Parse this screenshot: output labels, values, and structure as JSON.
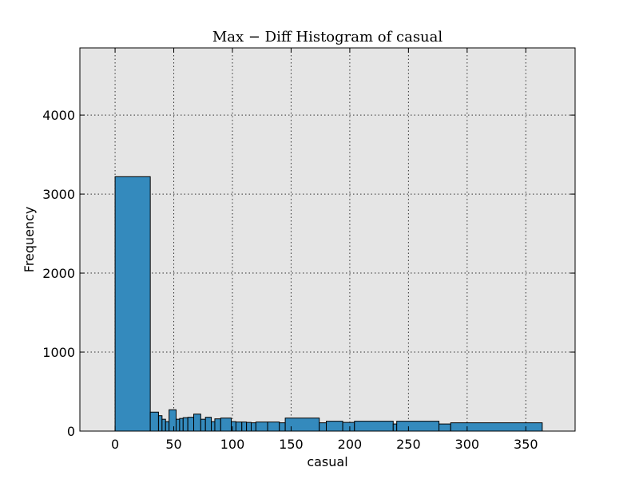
{
  "chart_data": {
    "type": "bar",
    "title": "Max − Diff Histogram of casual",
    "xlabel": "casual",
    "ylabel": "Frequency",
    "xlim": [
      -30,
      392
    ],
    "ylim": [
      0,
      4850
    ],
    "xticks": [
      "0",
      "50",
      "100",
      "150",
      "200",
      "250",
      "300",
      "350"
    ],
    "yticks": [
      "0",
      "1000",
      "2000",
      "3000",
      "4000"
    ],
    "grid": true,
    "background": "#E5E5E5",
    "bar_color": "#348ABD",
    "bins": [
      {
        "start": 0,
        "end": 30,
        "value": 3220
      },
      {
        "start": 30,
        "end": 37,
        "value": 240
      },
      {
        "start": 37,
        "end": 40,
        "value": 195
      },
      {
        "start": 40,
        "end": 43,
        "value": 150
      },
      {
        "start": 43,
        "end": 46,
        "value": 120
      },
      {
        "start": 46,
        "end": 52,
        "value": 270
      },
      {
        "start": 52,
        "end": 55,
        "value": 150
      },
      {
        "start": 55,
        "end": 58,
        "value": 160
      },
      {
        "start": 58,
        "end": 62,
        "value": 170
      },
      {
        "start": 62,
        "end": 67,
        "value": 175
      },
      {
        "start": 67,
        "end": 73,
        "value": 215
      },
      {
        "start": 73,
        "end": 77,
        "value": 150
      },
      {
        "start": 77,
        "end": 82,
        "value": 175
      },
      {
        "start": 82,
        "end": 85,
        "value": 120
      },
      {
        "start": 85,
        "end": 90,
        "value": 155
      },
      {
        "start": 90,
        "end": 99,
        "value": 165
      },
      {
        "start": 99,
        "end": 103,
        "value": 120
      },
      {
        "start": 103,
        "end": 108,
        "value": 115
      },
      {
        "start": 108,
        "end": 112,
        "value": 115
      },
      {
        "start": 112,
        "end": 116,
        "value": 110
      },
      {
        "start": 116,
        "end": 120,
        "value": 105
      },
      {
        "start": 120,
        "end": 130,
        "value": 115
      },
      {
        "start": 130,
        "end": 140,
        "value": 115
      },
      {
        "start": 140,
        "end": 145,
        "value": 105
      },
      {
        "start": 145,
        "end": 174,
        "value": 165
      },
      {
        "start": 174,
        "end": 180,
        "value": 105
      },
      {
        "start": 180,
        "end": 194,
        "value": 125
      },
      {
        "start": 194,
        "end": 204,
        "value": 110
      },
      {
        "start": 204,
        "end": 237,
        "value": 125
      },
      {
        "start": 237,
        "end": 240,
        "value": 90
      },
      {
        "start": 240,
        "end": 276,
        "value": 125
      },
      {
        "start": 276,
        "end": 286,
        "value": 90
      },
      {
        "start": 286,
        "end": 364,
        "value": 105
      }
    ]
  }
}
